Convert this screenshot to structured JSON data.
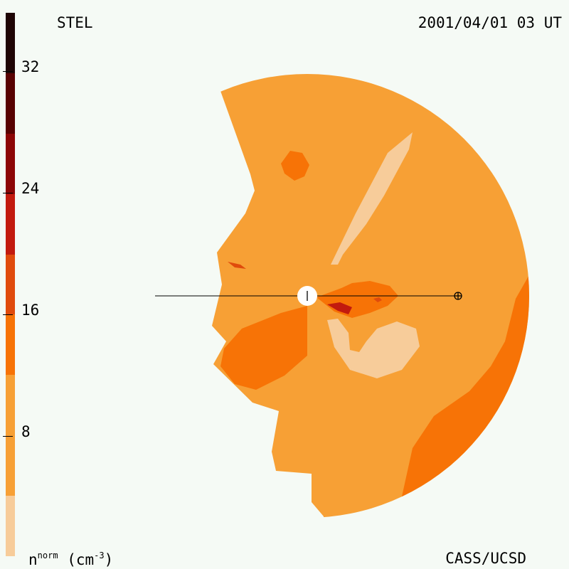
{
  "header": {
    "observatory": "STEL",
    "timestamp": "2001/04/01 03 UT"
  },
  "footer": {
    "unit_base": "n",
    "unit_sup": "norm",
    "unit_suffix": " (cm",
    "unit_exp": "-3",
    "unit_close": ")",
    "credit": "CASS/UCSD"
  },
  "colorbar": {
    "tick_labels": [
      "32",
      "24",
      "16",
      "8"
    ],
    "levels": [
      {
        "range": [
          0,
          4
        ],
        "color": "#f7cc9a"
      },
      {
        "range": [
          4,
          12
        ],
        "color": "#f7a035"
      },
      {
        "range": [
          12,
          16
        ],
        "color": "#f77306"
      },
      {
        "range": [
          16,
          20
        ],
        "color": "#e04b0c"
      },
      {
        "range": [
          20,
          24
        ],
        "color": "#c21a0e"
      },
      {
        "range": [
          24,
          28
        ],
        "color": "#8c0606"
      },
      {
        "range": [
          28,
          32
        ],
        "color": "#580202"
      },
      {
        "range": [
          32,
          36
        ],
        "color": "#1f0505"
      }
    ],
    "vmin": 0,
    "vmax": 36
  },
  "map": {
    "sun_marker": "sun",
    "earth_marker": "earth",
    "colors": {
      "base": "#f7a035",
      "light": "#f7cc9a",
      "mid": "#f77306",
      "dark": "#e04b0c",
      "darker": "#c21a0e",
      "line": "#000000",
      "sun": "#ffffff"
    }
  }
}
